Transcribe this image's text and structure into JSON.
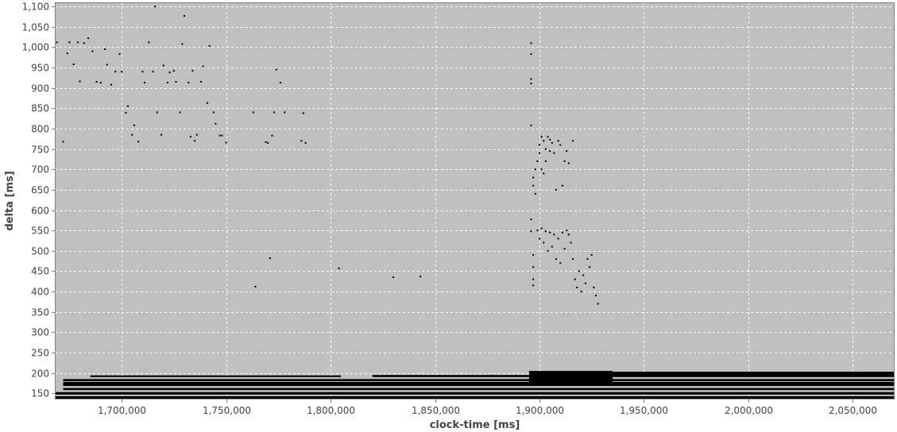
{
  "chart_data": {
    "type": "scatter",
    "xlabel": "clock-time [ms]",
    "ylabel": "delta [ms]",
    "xlim": [
      1668000,
      2070000
    ],
    "ylim": [
      135,
      1110
    ],
    "grid": true,
    "legend": "none",
    "colors": {
      "background": "#c0c0c0",
      "grid": "#ffffff",
      "points": "#000000",
      "text": "#444444"
    },
    "x_ticks": [
      {
        "value": 1700000,
        "label": "1,700,000"
      },
      {
        "value": 1750000,
        "label": "1,750,000"
      },
      {
        "value": 1800000,
        "label": "1,800,000"
      },
      {
        "value": 1850000,
        "label": "1,850,000"
      },
      {
        "value": 1900000,
        "label": "1,900,000"
      },
      {
        "value": 1950000,
        "label": "1,950,000"
      },
      {
        "value": 2000000,
        "label": "2,000,000"
      },
      {
        "value": 2050000,
        "label": "2,050,000"
      }
    ],
    "y_ticks": [
      {
        "value": 150,
        "label": "150"
      },
      {
        "value": 200,
        "label": "200"
      },
      {
        "value": 250,
        "label": "250"
      },
      {
        "value": 300,
        "label": "300"
      },
      {
        "value": 350,
        "label": "350"
      },
      {
        "value": 400,
        "label": "400"
      },
      {
        "value": 450,
        "label": "450"
      },
      {
        "value": 500,
        "label": "500"
      },
      {
        "value": 550,
        "label": "550"
      },
      {
        "value": 600,
        "label": "600"
      },
      {
        "value": 650,
        "label": "650"
      },
      {
        "value": 700,
        "label": "700"
      },
      {
        "value": 750,
        "label": "750"
      },
      {
        "value": 800,
        "label": "800"
      },
      {
        "value": 850,
        "label": "850"
      },
      {
        "value": 900,
        "label": "900"
      },
      {
        "value": 950,
        "label": "950"
      },
      {
        "value": 1000,
        "label": "1,000"
      },
      {
        "value": 1050,
        "label": "1,050"
      },
      {
        "value": 1100,
        "label": "1,100"
      }
    ],
    "bands": [
      {
        "x": [
          1668000,
          2070000
        ],
        "y": [
          137,
          143
        ]
      },
      {
        "x": [
          1668000,
          2070000
        ],
        "y": [
          147,
          153
        ]
      },
      {
        "x": [
          1672000,
          2070000
        ],
        "y": [
          158,
          163
        ]
      },
      {
        "x": [
          1672000,
          2070000
        ],
        "y": [
          168,
          178
        ]
      },
      {
        "x": [
          1672000,
          2070000
        ],
        "y": [
          180,
          185
        ]
      },
      {
        "x": [
          1685000,
          1805000
        ],
        "y": [
          190,
          194
        ]
      },
      {
        "x": [
          1820000,
          1895000
        ],
        "y": [
          190,
          195
        ]
      },
      {
        "x": [
          1895000,
          1935000
        ],
        "y": [
          175,
          205
        ]
      },
      {
        "x": [
          1930000,
          2070000
        ],
        "y": [
          190,
          203
        ]
      }
    ],
    "series": [
      {
        "values": [
          [
            1669000,
            1012
          ],
          [
            1672000,
            768
          ],
          [
            1674000,
            985
          ],
          [
            1675000,
            1012
          ],
          [
            1677000,
            958
          ],
          [
            1679000,
            1012
          ],
          [
            1680000,
            916
          ],
          [
            1682000,
            1010
          ],
          [
            1684000,
            1022
          ],
          [
            1686000,
            990
          ],
          [
            1688000,
            915
          ],
          [
            1690000,
            913
          ],
          [
            1692000,
            995
          ],
          [
            1693000,
            957
          ],
          [
            1695000,
            908
          ],
          [
            1697000,
            940
          ],
          [
            1699000,
            983
          ],
          [
            1700000,
            940
          ],
          [
            1702000,
            839
          ],
          [
            1703000,
            855
          ],
          [
            1705000,
            785
          ],
          [
            1706000,
            808
          ],
          [
            1708000,
            768
          ],
          [
            1710000,
            940
          ],
          [
            1711000,
            913
          ],
          [
            1713000,
            1012
          ],
          [
            1715000,
            940
          ],
          [
            1716000,
            1100
          ],
          [
            1717000,
            840
          ],
          [
            1719000,
            785
          ],
          [
            1720000,
            955
          ],
          [
            1722000,
            913
          ],
          [
            1723000,
            938
          ],
          [
            1725000,
            942
          ],
          [
            1726000,
            915
          ],
          [
            1728000,
            840
          ],
          [
            1729000,
            1008
          ],
          [
            1730000,
            1077
          ],
          [
            1732000,
            913
          ],
          [
            1733000,
            780
          ],
          [
            1734000,
            942
          ],
          [
            1735000,
            770
          ],
          [
            1736000,
            785
          ],
          [
            1738000,
            915
          ],
          [
            1739000,
            953
          ],
          [
            1741000,
            863
          ],
          [
            1742000,
            1003
          ],
          [
            1744000,
            840
          ],
          [
            1745000,
            812
          ],
          [
            1747000,
            783
          ],
          [
            1748000,
            783
          ],
          [
            1750000,
            766
          ],
          [
            1763000,
            840
          ],
          [
            1764000,
            412
          ],
          [
            1769000,
            767
          ],
          [
            1770000,
            765
          ],
          [
            1771000,
            482
          ],
          [
            1772000,
            783
          ],
          [
            1773000,
            840
          ],
          [
            1774000,
            945
          ],
          [
            1776000,
            913
          ],
          [
            1778000,
            840
          ],
          [
            1786000,
            770
          ],
          [
            1787000,
            838
          ],
          [
            1788000,
            765
          ],
          [
            1804000,
            457
          ],
          [
            1830000,
            435
          ],
          [
            1843000,
            437
          ],
          [
            1896000,
            1010
          ],
          [
            1896000,
            983
          ],
          [
            1896000,
            922
          ],
          [
            1896000,
            911
          ],
          [
            1896000,
            808
          ],
          [
            1896000,
            577
          ],
          [
            1896000,
            548
          ],
          [
            1897000,
            490
          ],
          [
            1897000,
            460
          ],
          [
            1897000,
            430
          ],
          [
            1897000,
            415
          ],
          [
            1897000,
            680
          ],
          [
            1897000,
            660
          ],
          [
            1898000,
            700
          ],
          [
            1898000,
            640
          ],
          [
            1899000,
            720
          ],
          [
            1900000,
            760
          ],
          [
            1900000,
            740
          ],
          [
            1901000,
            780
          ],
          [
            1901000,
            700
          ],
          [
            1902000,
            770
          ],
          [
            1902000,
            690
          ],
          [
            1903000,
            750
          ],
          [
            1903000,
            720
          ],
          [
            1904000,
            780
          ],
          [
            1905000,
            773
          ],
          [
            1905000,
            745
          ],
          [
            1906000,
            765
          ],
          [
            1907000,
            740
          ],
          [
            1908000,
            650
          ],
          [
            1909000,
            770
          ],
          [
            1910000,
            760
          ],
          [
            1911000,
            660
          ],
          [
            1912000,
            720
          ],
          [
            1913000,
            745
          ],
          [
            1914000,
            715
          ],
          [
            1916000,
            770
          ],
          [
            1899000,
            550
          ],
          [
            1900000,
            530
          ],
          [
            1901000,
            555
          ],
          [
            1902000,
            520
          ],
          [
            1903000,
            548
          ],
          [
            1904000,
            500
          ],
          [
            1905000,
            545
          ],
          [
            1906000,
            510
          ],
          [
            1907000,
            540
          ],
          [
            1908000,
            480
          ],
          [
            1909000,
            530
          ],
          [
            1910000,
            470
          ],
          [
            1911000,
            545
          ],
          [
            1912000,
            505
          ],
          [
            1913000,
            550
          ],
          [
            1914000,
            540
          ],
          [
            1915000,
            520
          ],
          [
            1916000,
            480
          ],
          [
            1917000,
            430
          ],
          [
            1918000,
            410
          ],
          [
            1919000,
            450
          ],
          [
            1920000,
            400
          ],
          [
            1921000,
            440
          ],
          [
            1922000,
            420
          ],
          [
            1923000,
            480
          ],
          [
            1924000,
            460
          ],
          [
            1925000,
            490
          ],
          [
            1926000,
            410
          ],
          [
            1927000,
            390
          ],
          [
            1928000,
            370
          ]
        ]
      }
    ]
  }
}
